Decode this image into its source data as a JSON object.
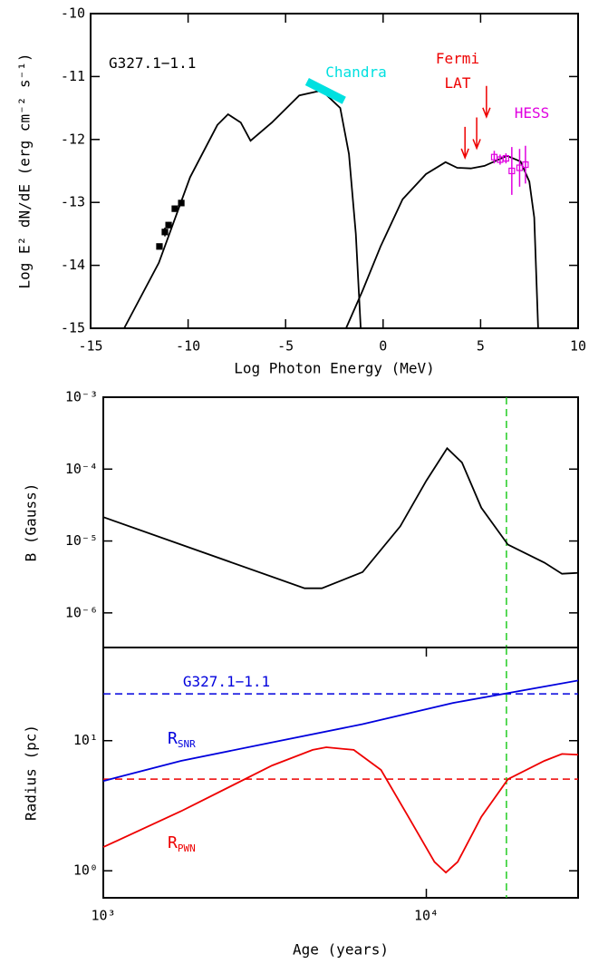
{
  "chart_data": [
    {
      "type": "line",
      "xlabel": "Log Photon Energy (MeV)",
      "ylabel": "Log E² dN/dE (erg cm⁻² s⁻¹)",
      "xlim": [
        -15,
        10
      ],
      "ylim": [
        -15,
        -10
      ],
      "xticks": [
        -15,
        -10,
        -5,
        0,
        5,
        10
      ],
      "yticks": [
        -15,
        -14,
        -13,
        -12,
        -11,
        -10
      ],
      "annotations": [
        {
          "text": "G327.1−1.1",
          "color": "#000000"
        },
        {
          "text": "Chandra",
          "color": "#00e0e0"
        },
        {
          "text": "Fermi",
          "color": "#ee0000"
        },
        {
          "text": "LAT",
          "color": "#ee0000"
        },
        {
          "text": "HESS",
          "color": "#e000e0"
        }
      ],
      "series": [
        {
          "kind": "line",
          "color": "#000000",
          "x": [
            -13.28,
            -11.5,
            -9.9,
            -8.5,
            -7.95,
            -7.3,
            -6.8,
            -5.7,
            -4.3,
            -3.15,
            -2.2,
            -1.75,
            -1.4,
            -1.15
          ],
          "values": [
            -15,
            -13.96,
            -12.6,
            -11.77,
            -11.6,
            -11.73,
            -12.02,
            -11.73,
            -11.3,
            -11.22,
            -11.5,
            -12.23,
            -13.5,
            -15
          ]
        },
        {
          "kind": "line",
          "color": "#000000",
          "x": [
            -1.9,
            -1.05,
            -0.13,
            1.0,
            2.2,
            3.2,
            3.8,
            4.5,
            5.2,
            6.35,
            7.05,
            7.5,
            7.75,
            7.95
          ],
          "values": [
            -15,
            -14.4,
            -13.7,
            -12.95,
            -12.55,
            -12.36,
            -12.45,
            -12.46,
            -12.42,
            -12.26,
            -12.35,
            -12.67,
            -13.24,
            -15
          ]
        },
        {
          "kind": "errorbar",
          "color": "#000000",
          "x": [
            -11.47,
            -11.19,
            -11.0,
            -10.68,
            -10.35
          ],
          "values": [
            -13.7,
            -13.47,
            -13.36,
            -13.1,
            -13.01
          ],
          "errors": [
            0.04,
            0.07,
            0.05,
            0.05,
            0.04
          ]
        },
        {
          "kind": "bowtie",
          "color": "#00e0e0",
          "x": [
            -3.9,
            -2.0
          ],
          "values": [
            -11.08,
            -11.38
          ]
        },
        {
          "kind": "upper_limit",
          "color": "#ee0000",
          "x": [
            4.2,
            4.8,
            5.3
          ],
          "values": [
            -11.8,
            -11.65,
            -11.15
          ]
        },
        {
          "kind": "errorbar",
          "color": "#e000e0",
          "x": [
            5.7,
            6.0,
            6.3,
            6.6,
            7.0,
            7.3
          ],
          "values": [
            -12.28,
            -12.32,
            -12.3,
            -12.5,
            -12.45,
            -12.4
          ],
          "errors": [
            0.1,
            0.08,
            0.08,
            0.38,
            0.3,
            0.3
          ]
        }
      ]
    },
    {
      "type": "line",
      "ylabel": "B (Gauss)",
      "log_x": true,
      "log_y": true,
      "xlim": [
        1000,
        29500
      ],
      "ylim": [
        3.3e-07,
        0.001
      ],
      "yticks": [
        {
          "value": 1e-06,
          "label": "10⁻⁶"
        },
        {
          "value": 1e-05,
          "label": "10⁻⁵"
        },
        {
          "value": 0.0001,
          "label": "10⁻⁴"
        },
        {
          "value": 0.001,
          "label": "10⁻³"
        }
      ],
      "vlines": [
        {
          "value": 17700,
          "color": "#22cc22"
        }
      ],
      "series": [
        {
          "kind": "line",
          "color": "#000000",
          "x": [
            1000,
            4200,
            4750,
            6350,
            8300,
            10000,
            11600,
            12900,
            14800,
            17900,
            23200,
            26300,
            29500
          ],
          "values": [
            2.15e-05,
            2.2e-06,
            2.2e-06,
            3.7e-06,
            1.6e-05,
            6.9e-05,
            0.000195,
            0.000123,
            2.9e-05,
            8.9e-06,
            5e-06,
            3.5e-06,
            3.6e-06
          ]
        }
      ]
    },
    {
      "type": "line",
      "xlabel": "Age (years)",
      "ylabel": "Radius (pc)",
      "log_x": true,
      "log_y": true,
      "xlim": [
        1000,
        29500
      ],
      "ylim": [
        0.62,
        52
      ],
      "xticks": [
        {
          "value": 1000,
          "label": "10³"
        },
        {
          "value": 10000,
          "label": "10⁴"
        }
      ],
      "yticks": [
        {
          "value": 1,
          "label": "10⁰"
        },
        {
          "value": 10,
          "label": "10¹"
        }
      ],
      "vlines": [
        {
          "value": 17700,
          "color": "#22cc22"
        }
      ],
      "hlines": [
        {
          "value": 22.9,
          "color": "#0000dd"
        },
        {
          "value": 5.06,
          "color": "#ee0000"
        }
      ],
      "annotations": [
        {
          "text": "G327.1−1.1",
          "color": "#0000dd"
        },
        {
          "text": "R",
          "sub": "SNR",
          "color": "#0000dd"
        },
        {
          "text": "R",
          "sub": "PWN",
          "color": "#ee0000"
        }
      ],
      "series": [
        {
          "kind": "line",
          "color": "#0000dd",
          "x": [
            1000,
            1740,
            3330,
            6350,
            12100,
            29500
          ],
          "values": [
            4.9,
            7.0,
            9.7,
            13.4,
            19.5,
            29
          ]
        },
        {
          "kind": "line",
          "color": "#ee0000",
          "x": [
            1000,
            1740,
            3330,
            4450,
            4900,
            5960,
            7240,
            8800,
            10600,
            11500,
            12500,
            14800,
            17900,
            23200,
            26300,
            29500
          ],
          "values": [
            1.52,
            2.87,
            6.45,
            8.5,
            8.9,
            8.5,
            5.96,
            2.6,
            1.17,
            0.97,
            1.17,
            2.6,
            5.06,
            7.0,
            7.9,
            7.8
          ]
        }
      ]
    }
  ]
}
